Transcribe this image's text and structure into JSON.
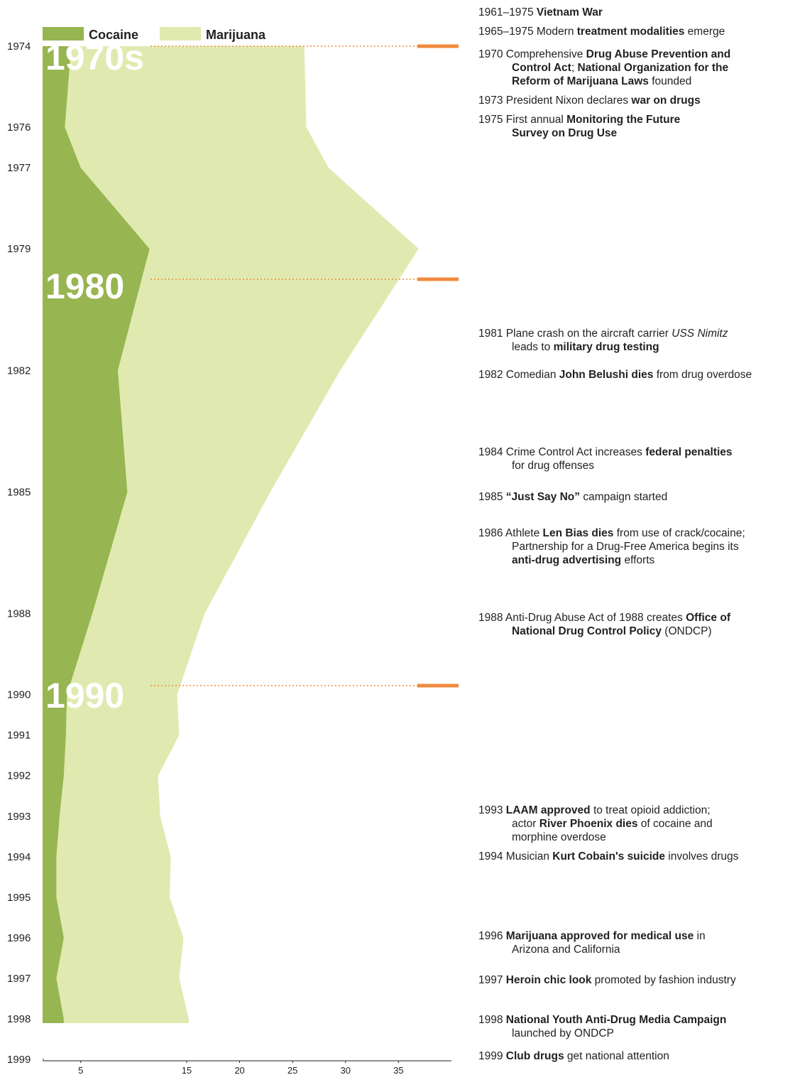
{
  "chart_data": {
    "type": "area",
    "x": [
      1974,
      1976,
      1977,
      1979,
      1982,
      1985,
      1988,
      1990,
      1991,
      1992,
      1993,
      1994,
      1995,
      1996,
      1997,
      1998
    ],
    "series": [
      {
        "name": "Marijuana",
        "color": "#e0eab0",
        "values": [
          26.1,
          26.3,
          28.4,
          36.9,
          29.5,
          22.9,
          16.7,
          14.1,
          14.3,
          12.3,
          12.5,
          13.5,
          13.4,
          14.7,
          14.3,
          15.2
        ]
      },
      {
        "name": "Cocaine",
        "color": "#97b550",
        "values": [
          4.1,
          3.5,
          5.0,
          11.5,
          8.5,
          9.4,
          6.1,
          3.7,
          3.6,
          3.4,
          3.0,
          2.7,
          2.7,
          3.4,
          2.7,
          3.4
        ]
      }
    ],
    "legend_order": [
      "Cocaine",
      "Marijuana"
    ],
    "ylim": [
      1974,
      1999
    ],
    "yticks": [
      1974,
      1976,
      1977,
      1979,
      1982,
      1985,
      1988,
      1990,
      1991,
      1992,
      1993,
      1994,
      1995,
      1996,
      1997,
      1998,
      1999
    ],
    "xlim": [
      1.4,
      40
    ],
    "xticks": [
      5,
      15,
      20,
      25,
      30,
      35
    ],
    "decades": [
      "1970s",
      "1980",
      "1990"
    ],
    "marker_color": "#f08a3c",
    "events": [
      {
        "year": "1961–1975",
        "lines": [
          [
            {
              "text": " Vietnam War",
              "weight": "bold"
            }
          ]
        ]
      },
      {
        "year": "1965–1975",
        "lines": [
          [
            {
              "text": " Modern "
            },
            {
              "text": "treatment modalities",
              "weight": "bold"
            },
            {
              "text": " emerge"
            }
          ]
        ]
      },
      {
        "year": "1970",
        "lines": [
          [
            {
              "text": " Comprehensive "
            },
            {
              "text": "Drug Abuse Prevention and",
              "weight": "bold"
            }
          ],
          [
            {
              "text": "Control Act",
              "weight": "bold"
            },
            {
              "text": "; "
            },
            {
              "text": "National Organization for the",
              "weight": "bold"
            }
          ],
          [
            {
              "text": "Reform of Marijuana Laws",
              "weight": "bold"
            },
            {
              "text": " founded"
            }
          ]
        ]
      },
      {
        "year": "1973",
        "lines": [
          [
            {
              "text": " President Nixon declares "
            },
            {
              "text": "war on drugs",
              "weight": "bold"
            }
          ]
        ]
      },
      {
        "year": "1975",
        "lines": [
          [
            {
              "text": " First annual "
            },
            {
              "text": "Monitoring the Future",
              "weight": "bold"
            }
          ],
          [
            {
              "text": "Survey on Drug Use",
              "weight": "bold"
            }
          ]
        ]
      },
      {
        "year": "1981",
        "lines": [
          [
            {
              "text": " Plane crash on the aircraft carrier "
            },
            {
              "text": "USS Nimitz",
              "style": "italic"
            }
          ],
          [
            {
              "text": "leads to "
            },
            {
              "text": "military drug testing",
              "weight": "bold"
            }
          ]
        ]
      },
      {
        "year": "1982",
        "lines": [
          [
            {
              "text": " Comedian "
            },
            {
              "text": "John Belushi dies",
              "weight": "bold"
            },
            {
              "text": " from drug overdose"
            }
          ]
        ]
      },
      {
        "year": "1984",
        "lines": [
          [
            {
              "text": " Crime Control Act increases "
            },
            {
              "text": "federal penalties",
              "weight": "bold"
            }
          ],
          [
            {
              "text": "for drug offenses"
            }
          ]
        ]
      },
      {
        "year": "1985",
        "lines": [
          [
            {
              "text": " “Just Say No”",
              "weight": "bold"
            },
            {
              "text": " campaign started"
            }
          ]
        ]
      },
      {
        "year": "1986",
        "lines": [
          [
            {
              "text": " Athlete "
            },
            {
              "text": "Len Bias dies",
              "weight": "bold"
            },
            {
              "text": " from use of crack/cocaine;"
            }
          ],
          [
            {
              "text": "Partnership for a Drug-Free America begins its"
            }
          ],
          [
            {
              "text": "anti-drug advertising",
              "weight": "bold"
            },
            {
              "text": " efforts"
            }
          ]
        ]
      },
      {
        "year": "1988",
        "lines": [
          [
            {
              "text": " Anti-Drug Abuse Act of 1988 creates "
            },
            {
              "text": "Office of",
              "weight": "bold"
            }
          ],
          [
            {
              "text": "National Drug Control Policy",
              "weight": "bold"
            },
            {
              "text": " (ONDCP)"
            }
          ]
        ]
      },
      {
        "year": "1993",
        "lines": [
          [
            {
              "text": " LAAM approved",
              "weight": "bold"
            },
            {
              "text": " to treat opioid addiction;"
            }
          ],
          [
            {
              "text": "actor "
            },
            {
              "text": "River Phoenix dies",
              "weight": "bold"
            },
            {
              "text": " of cocaine and"
            }
          ],
          [
            {
              "text": "morphine overdose"
            }
          ]
        ]
      },
      {
        "year": "1994",
        "lines": [
          [
            {
              "text": " Musician "
            },
            {
              "text": "Kurt Cobain's suicide",
              "weight": "bold"
            },
            {
              "text": " involves drugs"
            }
          ]
        ]
      },
      {
        "year": "1996",
        "lines": [
          [
            {
              "text": " Marijuana approved for medical use",
              "weight": "bold"
            },
            {
              "text": " in"
            }
          ],
          [
            {
              "text": "Arizona and California"
            }
          ]
        ]
      },
      {
        "year": "1997",
        "lines": [
          [
            {
              "text": " Heroin chic look",
              "weight": "bold"
            },
            {
              "text": " promoted by fashion industry"
            }
          ]
        ]
      },
      {
        "year": "1998",
        "lines": [
          [
            {
              "text": " National Youth Anti-Drug Media Campaign",
              "weight": "bold"
            }
          ],
          [
            {
              "text": "launched by ONDCP"
            }
          ]
        ]
      },
      {
        "year": "1999",
        "lines": [
          [
            {
              "text": " Club drugs",
              "weight": "bold"
            },
            {
              "text": " get national attention"
            }
          ]
        ]
      }
    ]
  }
}
